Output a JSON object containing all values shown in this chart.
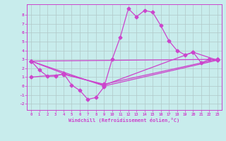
{
  "xlabel": "Windchill (Refroidissement éolien,°C)",
  "bg_color": "#c8ecec",
  "grid_color": "#b0c8c8",
  "line_color": "#cc44cc",
  "xlim": [
    -0.5,
    23.5
  ],
  "ylim": [
    -2.7,
    9.2
  ],
  "yticks": [
    -2,
    -1,
    0,
    1,
    2,
    3,
    4,
    5,
    6,
    7,
    8
  ],
  "xticks": [
    0,
    1,
    2,
    3,
    4,
    5,
    6,
    7,
    8,
    9,
    10,
    11,
    12,
    13,
    14,
    15,
    16,
    17,
    18,
    19,
    20,
    21,
    22,
    23
  ],
  "line1_x": [
    0,
    1,
    2,
    3,
    4,
    5,
    6,
    7,
    8,
    9,
    10,
    11,
    12,
    13,
    14,
    15,
    16,
    17,
    18,
    19,
    20,
    21,
    22,
    23
  ],
  "line1_y": [
    2.8,
    1.8,
    1.1,
    1.1,
    1.4,
    0.1,
    -0.5,
    -1.5,
    -1.3,
    -0.1,
    3.0,
    5.5,
    8.7,
    7.8,
    8.5,
    8.3,
    6.8,
    5.1,
    4.0,
    3.5,
    3.8,
    2.6,
    3.0,
    2.9
  ],
  "line2_x": [
    0,
    23
  ],
  "line2_y": [
    2.8,
    3.0
  ],
  "line3_x": [
    0,
    9,
    23
  ],
  "line3_y": [
    2.8,
    0.0,
    2.9
  ],
  "line4_x": [
    0,
    4,
    9,
    23
  ],
  "line4_y": [
    1.0,
    1.3,
    0.2,
    3.0
  ],
  "line5_x": [
    0,
    4,
    9,
    20,
    23
  ],
  "line5_y": [
    2.8,
    1.4,
    0.1,
    3.8,
    2.9
  ]
}
